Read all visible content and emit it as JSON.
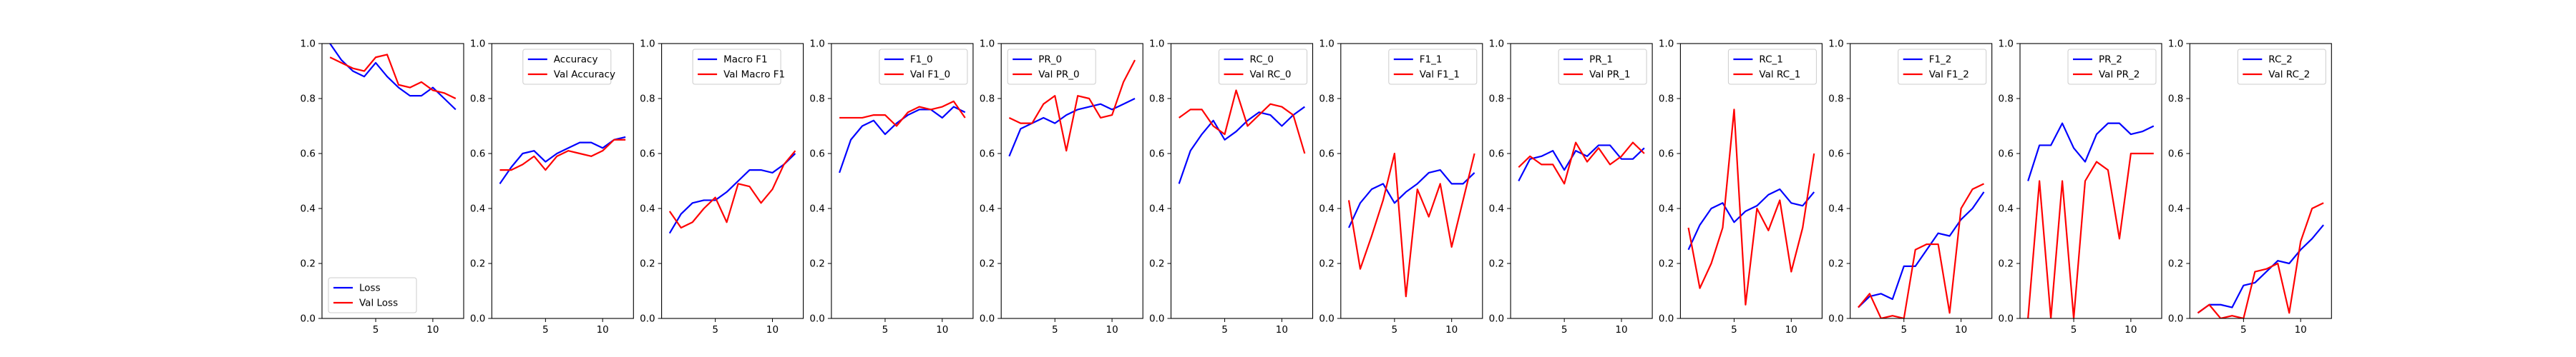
{
  "figure": {
    "blue": "#0000ff",
    "red": "#ff0000",
    "axis_color": "#000000"
  },
  "chart_data": [
    {
      "type": "line",
      "legend_loc": "lower-left",
      "x": [
        1,
        2,
        3,
        4,
        5,
        6,
        7,
        8,
        9,
        10,
        11,
        12
      ],
      "ylim": [
        0.0,
        1.0
      ],
      "yticks": [
        0.0,
        0.2,
        0.4,
        0.6,
        0.8,
        1.0
      ],
      "xticks": [
        5,
        10
      ],
      "series": [
        {
          "name": "Loss",
          "color": "#0000ff",
          "values": [
            1.0,
            0.94,
            0.9,
            0.88,
            0.93,
            0.88,
            0.84,
            0.81,
            0.81,
            0.84,
            0.8,
            0.76
          ]
        },
        {
          "name": "Val Loss",
          "color": "#ff0000",
          "values": [
            0.95,
            0.93,
            0.91,
            0.9,
            0.95,
            0.96,
            0.85,
            0.84,
            0.86,
            0.83,
            0.82,
            0.8
          ]
        }
      ]
    },
    {
      "type": "line",
      "legend_loc": "upper-center",
      "x": [
        1,
        2,
        3,
        4,
        5,
        6,
        7,
        8,
        9,
        10,
        11,
        12
      ],
      "ylim": [
        0.0,
        1.0
      ],
      "yticks": [
        0.0,
        0.2,
        0.4,
        0.6,
        0.8,
        1.0
      ],
      "xticks": [
        5,
        10
      ],
      "series": [
        {
          "name": "Accuracy",
          "color": "#0000ff",
          "values": [
            0.49,
            0.55,
            0.6,
            0.61,
            0.57,
            0.6,
            0.62,
            0.64,
            0.64,
            0.62,
            0.65,
            0.66
          ]
        },
        {
          "name": "Val Accuracy",
          "color": "#ff0000",
          "values": [
            0.54,
            0.54,
            0.56,
            0.59,
            0.54,
            0.59,
            0.61,
            0.6,
            0.59,
            0.61,
            0.65,
            0.65
          ]
        }
      ]
    },
    {
      "type": "line",
      "legend_loc": "upper-center",
      "x": [
        1,
        2,
        3,
        4,
        5,
        6,
        7,
        8,
        9,
        10,
        11,
        12
      ],
      "ylim": [
        0.0,
        1.0
      ],
      "yticks": [
        0.0,
        0.2,
        0.4,
        0.6,
        0.8,
        1.0
      ],
      "xticks": [
        5,
        10
      ],
      "series": [
        {
          "name": "Macro F1",
          "color": "#0000ff",
          "values": [
            0.31,
            0.38,
            0.42,
            0.43,
            0.43,
            0.46,
            0.5,
            0.54,
            0.54,
            0.53,
            0.56,
            0.6
          ]
        },
        {
          "name": "Val Macro F1",
          "color": "#ff0000",
          "values": [
            0.39,
            0.33,
            0.35,
            0.4,
            0.44,
            0.35,
            0.49,
            0.48,
            0.42,
            0.47,
            0.56,
            0.61
          ]
        }
      ]
    },
    {
      "type": "line",
      "legend_loc": "upper-right",
      "x": [
        1,
        2,
        3,
        4,
        5,
        6,
        7,
        8,
        9,
        10,
        11,
        12
      ],
      "ylim": [
        0.0,
        1.0
      ],
      "yticks": [
        0.0,
        0.2,
        0.4,
        0.6,
        0.8,
        1.0
      ],
      "xticks": [
        5,
        10
      ],
      "series": [
        {
          "name": "F1_0",
          "color": "#0000ff",
          "values": [
            0.53,
            0.65,
            0.7,
            0.72,
            0.67,
            0.71,
            0.74,
            0.76,
            0.76,
            0.73,
            0.77,
            0.75
          ]
        },
        {
          "name": "Val F1_0",
          "color": "#ff0000",
          "values": [
            0.73,
            0.73,
            0.73,
            0.74,
            0.74,
            0.7,
            0.75,
            0.77,
            0.76,
            0.77,
            0.79,
            0.73
          ]
        }
      ]
    },
    {
      "type": "line",
      "legend_loc": "upper-left",
      "x": [
        1,
        2,
        3,
        4,
        5,
        6,
        7,
        8,
        9,
        10,
        11,
        12
      ],
      "ylim": [
        0.0,
        1.0
      ],
      "yticks": [
        0.0,
        0.2,
        0.4,
        0.6,
        0.8,
        1.0
      ],
      "xticks": [
        5,
        10
      ],
      "series": [
        {
          "name": "PR_0",
          "color": "#0000ff",
          "values": [
            0.59,
            0.69,
            0.71,
            0.73,
            0.71,
            0.74,
            0.76,
            0.77,
            0.78,
            0.76,
            0.78,
            0.8
          ]
        },
        {
          "name": "Val PR_0",
          "color": "#ff0000",
          "values": [
            0.73,
            0.71,
            0.71,
            0.78,
            0.81,
            0.61,
            0.81,
            0.8,
            0.73,
            0.74,
            0.86,
            0.94
          ]
        }
      ]
    },
    {
      "type": "line",
      "legend_loc": "upper-right",
      "x": [
        1,
        2,
        3,
        4,
        5,
        6,
        7,
        8,
        9,
        10,
        11,
        12
      ],
      "ylim": [
        0.0,
        1.0
      ],
      "yticks": [
        0.0,
        0.2,
        0.4,
        0.6,
        0.8,
        1.0
      ],
      "xticks": [
        5,
        10
      ],
      "series": [
        {
          "name": "RC_0",
          "color": "#0000ff",
          "values": [
            0.49,
            0.61,
            0.67,
            0.72,
            0.65,
            0.68,
            0.72,
            0.75,
            0.74,
            0.7,
            0.74,
            0.77
          ]
        },
        {
          "name": "Val RC_0",
          "color": "#ff0000",
          "values": [
            0.73,
            0.76,
            0.76,
            0.7,
            0.67,
            0.83,
            0.7,
            0.74,
            0.78,
            0.77,
            0.74,
            0.6
          ]
        }
      ]
    },
    {
      "type": "line",
      "legend_loc": "upper-right",
      "x": [
        1,
        2,
        3,
        4,
        5,
        6,
        7,
        8,
        9,
        10,
        11,
        12
      ],
      "ylim": [
        0.0,
        1.0
      ],
      "yticks": [
        0.0,
        0.2,
        0.4,
        0.6,
        0.8,
        1.0
      ],
      "xticks": [
        5,
        10
      ],
      "series": [
        {
          "name": "F1_1",
          "color": "#0000ff",
          "values": [
            0.33,
            0.42,
            0.47,
            0.49,
            0.42,
            0.46,
            0.49,
            0.53,
            0.54,
            0.49,
            0.49,
            0.53
          ]
        },
        {
          "name": "Val F1_1",
          "color": "#ff0000",
          "values": [
            0.43,
            0.18,
            0.3,
            0.43,
            0.6,
            0.08,
            0.47,
            0.37,
            0.49,
            0.26,
            0.43,
            0.6
          ]
        }
      ]
    },
    {
      "type": "line",
      "legend_loc": "upper-right",
      "x": [
        1,
        2,
        3,
        4,
        5,
        6,
        7,
        8,
        9,
        10,
        11,
        12
      ],
      "ylim": [
        0.0,
        1.0
      ],
      "yticks": [
        0.0,
        0.2,
        0.4,
        0.6,
        0.8,
        1.0
      ],
      "xticks": [
        5,
        10
      ],
      "series": [
        {
          "name": "PR_1",
          "color": "#0000ff",
          "values": [
            0.5,
            0.58,
            0.59,
            0.61,
            0.54,
            0.61,
            0.59,
            0.63,
            0.63,
            0.58,
            0.58,
            0.62
          ]
        },
        {
          "name": "Val PR_1",
          "color": "#ff0000",
          "values": [
            0.55,
            0.59,
            0.56,
            0.56,
            0.49,
            0.64,
            0.57,
            0.62,
            0.56,
            0.59,
            0.64,
            0.6
          ]
        }
      ]
    },
    {
      "type": "line",
      "legend_loc": "upper-right",
      "x": [
        1,
        2,
        3,
        4,
        5,
        6,
        7,
        8,
        9,
        10,
        11,
        12
      ],
      "ylim": [
        0.0,
        1.0
      ],
      "yticks": [
        0.0,
        0.2,
        0.4,
        0.6,
        0.8,
        1.0
      ],
      "xticks": [
        5,
        10
      ],
      "series": [
        {
          "name": "RC_1",
          "color": "#0000ff",
          "values": [
            0.25,
            0.34,
            0.4,
            0.42,
            0.35,
            0.39,
            0.41,
            0.45,
            0.47,
            0.42,
            0.41,
            0.46
          ]
        },
        {
          "name": "Val RC_1",
          "color": "#ff0000",
          "values": [
            0.33,
            0.11,
            0.2,
            0.33,
            0.76,
            0.05,
            0.4,
            0.32,
            0.43,
            0.17,
            0.33,
            0.6
          ]
        }
      ]
    },
    {
      "type": "line",
      "legend_loc": "upper-right",
      "x": [
        1,
        2,
        3,
        4,
        5,
        6,
        7,
        8,
        9,
        10,
        11,
        12
      ],
      "ylim": [
        0.0,
        1.0
      ],
      "yticks": [
        0.0,
        0.2,
        0.4,
        0.6,
        0.8,
        1.0
      ],
      "xticks": [
        5,
        10
      ],
      "series": [
        {
          "name": "F1_2",
          "color": "#0000ff",
          "values": [
            0.04,
            0.08,
            0.09,
            0.07,
            0.19,
            0.19,
            0.25,
            0.31,
            0.3,
            0.36,
            0.4,
            0.46
          ]
        },
        {
          "name": "Val F1_2",
          "color": "#ff0000",
          "values": [
            0.04,
            0.09,
            0.0,
            0.01,
            0.0,
            0.25,
            0.27,
            0.27,
            0.02,
            0.4,
            0.47,
            0.49
          ]
        }
      ]
    },
    {
      "type": "line",
      "legend_loc": "upper-right",
      "x": [
        1,
        2,
        3,
        4,
        5,
        6,
        7,
        8,
        9,
        10,
        11,
        12
      ],
      "ylim": [
        0.0,
        1.0
      ],
      "yticks": [
        0.0,
        0.2,
        0.4,
        0.6,
        0.8,
        1.0
      ],
      "xticks": [
        5,
        10
      ],
      "series": [
        {
          "name": "PR_2",
          "color": "#0000ff",
          "values": [
            0.5,
            0.63,
            0.63,
            0.71,
            0.62,
            0.57,
            0.67,
            0.71,
            0.71,
            0.67,
            0.68,
            0.7
          ]
        },
        {
          "name": "Val PR_2",
          "color": "#ff0000",
          "values": [
            0.0,
            0.5,
            0.0,
            0.5,
            0.0,
            0.5,
            0.57,
            0.54,
            0.29,
            0.6,
            0.6,
            0.6
          ]
        }
      ]
    },
    {
      "type": "line",
      "legend_loc": "upper-right",
      "x": [
        1,
        2,
        3,
        4,
        5,
        6,
        7,
        8,
        9,
        10,
        11,
        12
      ],
      "ylim": [
        0.0,
        1.0
      ],
      "yticks": [
        0.0,
        0.2,
        0.4,
        0.6,
        0.8,
        1.0
      ],
      "xticks": [
        5,
        10
      ],
      "series": [
        {
          "name": "RC_2",
          "color": "#0000ff",
          "values": [
            0.02,
            0.05,
            0.05,
            0.04,
            0.12,
            0.13,
            0.17,
            0.21,
            0.2,
            0.25,
            0.29,
            0.34
          ]
        },
        {
          "name": "Val RC_2",
          "color": "#ff0000",
          "values": [
            0.02,
            0.05,
            0.0,
            0.01,
            0.0,
            0.17,
            0.18,
            0.2,
            0.02,
            0.28,
            0.4,
            0.42
          ]
        }
      ]
    }
  ]
}
